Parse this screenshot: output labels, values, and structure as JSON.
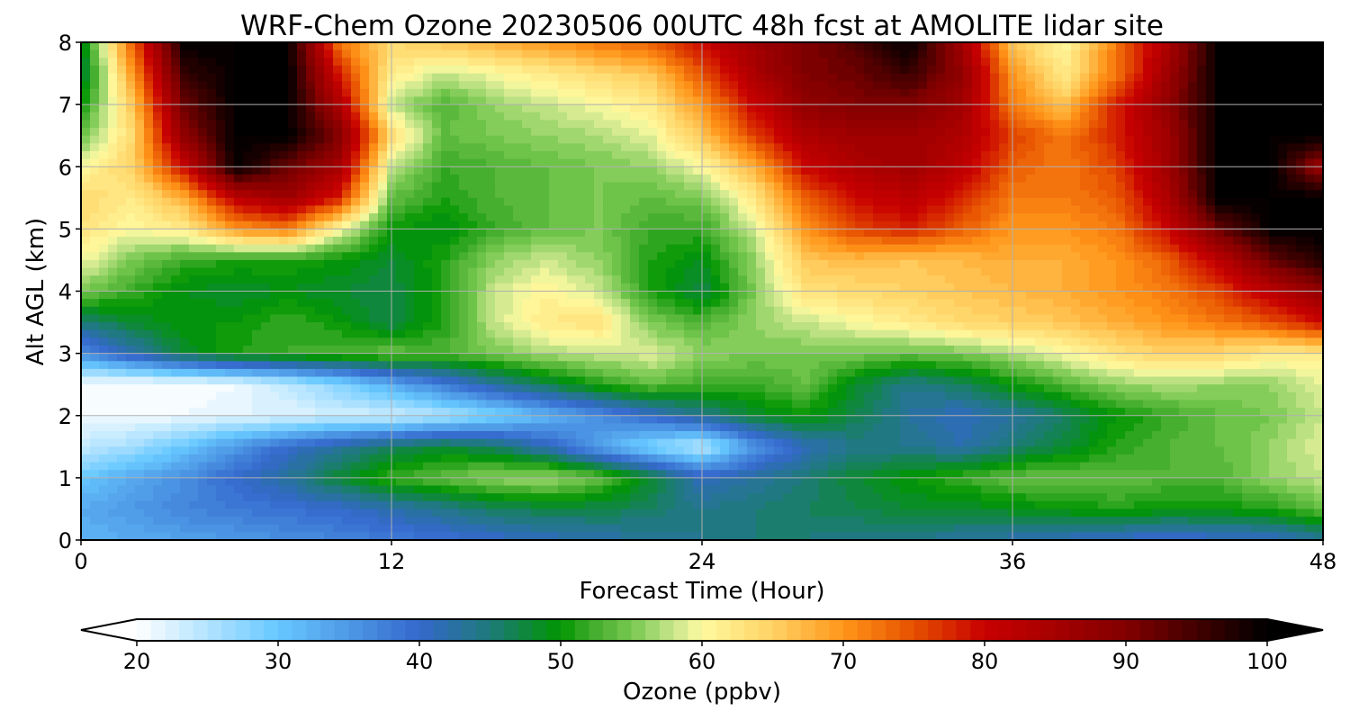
{
  "chart_data": {
    "type": "heatmap",
    "title": "WRF-Chem Ozone  20230506 00UTC 48h fcst at AMOLITE lidar site",
    "xlabel": "Forecast Time (Hour)",
    "ylabel": "Alt AGL (km)",
    "xlim": [
      0,
      48
    ],
    "ylim": [
      0,
      8
    ],
    "xticks": [
      "0",
      "12",
      "24",
      "36",
      "48"
    ],
    "yticks": [
      "0",
      "1",
      "2",
      "3",
      "4",
      "5",
      "6",
      "7",
      "8"
    ],
    "grid": true,
    "x": [
      0,
      2,
      4,
      6,
      8,
      10,
      12,
      14,
      16,
      18,
      20,
      22,
      24,
      26,
      28,
      30,
      32,
      34,
      36,
      38,
      40,
      42,
      44,
      46,
      48
    ],
    "y": [
      0,
      0.5,
      1,
      1.5,
      2,
      2.5,
      3,
      3.5,
      4,
      4.5,
      5,
      5.5,
      6,
      6.5,
      7,
      7.5,
      8
    ],
    "z": [
      [
        32,
        33,
        34,
        35,
        36,
        37,
        38,
        39,
        40,
        41,
        42,
        43,
        44,
        45,
        45,
        44,
        44,
        43,
        42,
        41,
        40,
        39,
        40,
        40,
        43
      ],
      [
        33,
        35,
        37,
        38,
        39,
        40,
        42,
        44,
        46,
        47,
        47,
        46,
        44,
        45,
        46,
        47,
        48,
        48,
        49,
        50,
        51,
        50,
        50,
        51,
        54
      ],
      [
        30,
        33,
        36,
        40,
        43,
        48,
        52,
        54,
        56,
        57,
        54,
        48,
        41,
        43,
        45,
        48,
        50,
        52,
        54,
        54,
        54,
        53,
        53,
        56,
        58
      ],
      [
        24,
        26,
        30,
        35,
        40,
        43,
        46,
        48,
        46,
        41,
        34,
        28,
        24,
        35,
        41,
        44,
        44,
        42,
        45,
        48,
        51,
        53,
        54,
        56,
        59
      ],
      [
        21,
        21,
        21,
        22,
        22,
        23,
        23,
        25,
        28,
        32,
        36,
        40,
        44,
        48,
        50,
        47,
        43,
        41,
        43,
        46,
        50,
        52,
        54,
        55,
        58
      ],
      [
        20,
        20,
        20,
        21,
        24,
        28,
        33,
        38,
        43,
        47,
        51,
        54,
        52,
        52,
        54,
        48,
        44,
        46,
        50,
        53,
        56,
        57,
        56,
        56,
        59
      ],
      [
        36,
        42,
        48,
        51,
        52,
        53,
        54,
        53,
        55,
        57,
        58,
        59,
        56,
        55,
        55,
        55,
        54,
        55,
        57,
        60,
        63,
        65,
        64,
        62,
        62
      ],
      [
        45,
        48,
        50,
        50,
        52,
        50,
        47,
        51,
        58,
        62,
        63,
        55,
        53,
        56,
        58,
        60,
        62,
        64,
        65,
        66,
        68,
        70,
        72,
        75,
        80
      ],
      [
        55,
        52,
        49,
        48,
        49,
        48,
        47,
        51,
        58,
        61,
        58,
        51,
        47,
        55,
        63,
        64,
        65,
        66,
        67,
        68,
        70,
        72,
        76,
        82,
        88
      ],
      [
        60,
        55,
        52,
        51,
        51,
        50,
        48,
        51,
        56,
        58,
        56,
        51,
        49,
        56,
        66,
        67,
        66,
        67,
        68,
        68,
        70,
        74,
        82,
        92,
        98
      ],
      [
        63,
        60,
        62,
        70,
        72,
        60,
        50,
        49,
        52,
        54,
        55,
        52,
        52,
        58,
        70,
        76,
        78,
        74,
        70,
        70,
        72,
        80,
        92,
        100,
        100
      ],
      [
        64,
        62,
        68,
        82,
        86,
        78,
        54,
        51,
        53,
        54,
        55,
        54,
        55,
        62,
        74,
        80,
        82,
        78,
        72,
        72,
        74,
        84,
        100,
        100,
        100
      ],
      [
        60,
        65,
        80,
        100,
        92,
        85,
        58,
        52,
        53,
        54,
        55,
        56,
        60,
        68,
        80,
        84,
        86,
        82,
        74,
        72,
        76,
        86,
        100,
        100,
        86
      ],
      [
        54,
        64,
        88,
        100,
        100,
        90,
        64,
        54,
        55,
        56,
        57,
        59,
        66,
        76,
        84,
        86,
        86,
        84,
        76,
        72,
        78,
        86,
        100,
        100,
        100
      ],
      [
        50,
        66,
        92,
        100,
        100,
        84,
        58,
        53,
        56,
        58,
        60,
        62,
        70,
        80,
        88,
        90,
        90,
        86,
        72,
        66,
        78,
        88,
        100,
        100,
        100
      ],
      [
        46,
        70,
        96,
        100,
        100,
        78,
        62,
        58,
        60,
        62,
        64,
        66,
        75,
        84,
        90,
        92,
        96,
        88,
        70,
        62,
        72,
        86,
        100,
        100,
        100
      ],
      [
        48,
        74,
        100,
        100,
        100,
        72,
        64,
        66,
        68,
        70,
        72,
        74,
        80,
        86,
        90,
        94,
        100,
        86,
        66,
        60,
        72,
        84,
        100,
        100,
        100
      ]
    ],
    "colorbar": {
      "label": "Ozone  (ppbv)",
      "min": 20,
      "max": 100,
      "step": 1,
      "extend": "both",
      "ticks": [
        "20",
        "30",
        "40",
        "50",
        "60",
        "70",
        "80",
        "90",
        "100"
      ],
      "stops": [
        [
          20,
          "#ffffff"
        ],
        [
          30,
          "#66c8ff"
        ],
        [
          40,
          "#3468cc"
        ],
        [
          45,
          "#1e7a7a"
        ],
        [
          50,
          "#009600"
        ],
        [
          52,
          "#3caa28"
        ],
        [
          55,
          "#78c850"
        ],
        [
          58,
          "#c8e68c"
        ],
        [
          60,
          "#fffaa0"
        ],
        [
          65,
          "#ffd264"
        ],
        [
          70,
          "#ff9619"
        ],
        [
          75,
          "#e65000"
        ],
        [
          80,
          "#c80000"
        ],
        [
          90,
          "#820000"
        ],
        [
          100,
          "#000000"
        ]
      ]
    }
  }
}
